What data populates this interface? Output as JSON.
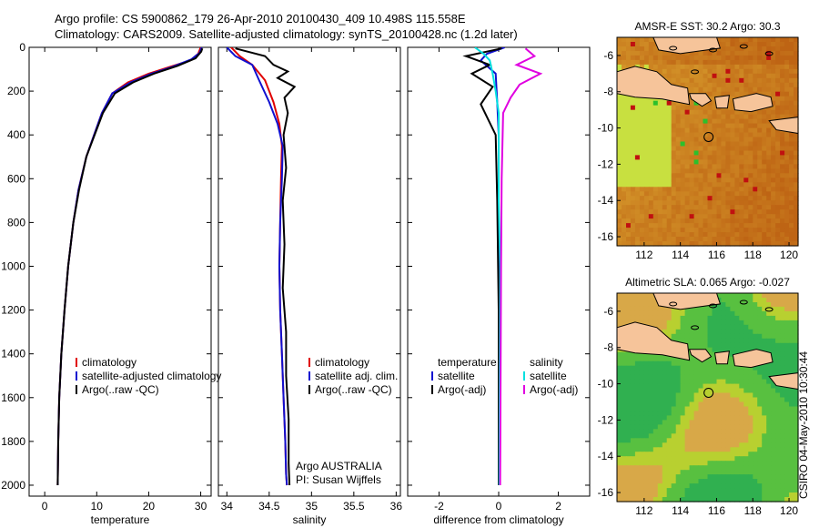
{
  "header": {
    "line1": "Argo profile: CS 5900862_179 26-Apr-2010 20100430_409 10.498S 115.558E",
    "line2": "Climatology: CARS2009. Satellite-adjusted climatology: synTS_20100428.nc (1.2d later)"
  },
  "side_label": "CSIRO 04-May-2010 10:30:44",
  "colors": {
    "climatology": "#e00000",
    "satellite": "#1010d0",
    "argo": "#000000",
    "cyan": "#00e0e0",
    "magenta": "#e000e0",
    "land": "#f6c49a"
  },
  "chart_data": [
    {
      "type": "line",
      "name": "temperature",
      "xlabel": "temperature",
      "xlim": [
        -3,
        32
      ],
      "ylim": [
        2050,
        0
      ],
      "xticks": [
        0,
        10,
        20,
        30
      ],
      "yticks": [
        0,
        200,
        400,
        600,
        800,
        1000,
        1200,
        1400,
        1600,
        1800,
        2000
      ],
      "legend": [
        "climatology",
        "satellite-adjusted climatology",
        "Argo(..raw -QC)"
      ],
      "series": [
        {
          "name": "climatology",
          "x": [
            30,
            29.5,
            28,
            24,
            20,
            16,
            13,
            11,
            9.5,
            8,
            6.5,
            5.5,
            4.5,
            3.8,
            3.2,
            2.8,
            2.6,
            2.5
          ],
          "y": [
            0,
            30,
            60,
            90,
            120,
            160,
            210,
            300,
            400,
            500,
            650,
            800,
            1000,
            1200,
            1400,
            1600,
            1800,
            2000
          ]
        },
        {
          "name": "satellite-adjusted",
          "x": [
            30.2,
            29.8,
            28.2,
            24.5,
            20.5,
            16.5,
            13,
            11,
            9.5,
            8,
            6.5,
            5.5,
            4.5,
            3.8,
            3.2,
            2.8,
            2.6,
            2.5
          ],
          "y": [
            0,
            25,
            55,
            90,
            120,
            160,
            210,
            300,
            400,
            500,
            650,
            800,
            1000,
            1200,
            1400,
            1600,
            1800,
            2000
          ]
        },
        {
          "name": "Argo",
          "x": [
            30.3,
            30.1,
            29,
            25.5,
            21,
            17,
            13.5,
            11.2,
            9.6,
            8,
            6.6,
            5.5,
            4.5,
            3.8,
            3.2,
            2.8,
            2.6,
            2.5
          ],
          "y": [
            5,
            20,
            50,
            85,
            120,
            160,
            210,
            300,
            400,
            500,
            650,
            800,
            1000,
            1200,
            1400,
            1600,
            1800,
            2000
          ]
        }
      ]
    },
    {
      "type": "line",
      "name": "salinity",
      "xlabel": "salinity",
      "xlim": [
        33.9,
        36.05
      ],
      "ylim": [
        2050,
        0
      ],
      "xticks": [
        34,
        34.5,
        35,
        35.5,
        36
      ],
      "legend": [
        "climatology",
        "satellite adj. clim.",
        "Argo(..raw -QC)"
      ],
      "annotations": [
        "Argo AUSTRALIA",
        "PI: Susan Wijffels"
      ],
      "series": [
        {
          "name": "climatology",
          "x": [
            34.05,
            34.15,
            34.3,
            34.45,
            34.55,
            34.62,
            34.65,
            34.64,
            34.63,
            34.62,
            34.63,
            34.65,
            34.67,
            34.69,
            34.7,
            34.71
          ],
          "y": [
            0,
            40,
            80,
            150,
            250,
            350,
            450,
            600,
            800,
            1000,
            1200,
            1400,
            1600,
            1800,
            1950,
            2000
          ]
        },
        {
          "name": "satellite",
          "x": [
            34.0,
            34.1,
            34.3,
            34.38,
            34.5,
            34.6,
            34.66,
            34.65,
            34.63,
            34.62,
            34.63,
            34.65,
            34.67,
            34.69,
            34.7,
            34.71
          ],
          "y": [
            0,
            40,
            80,
            150,
            250,
            350,
            450,
            600,
            800,
            1000,
            1200,
            1400,
            1600,
            1800,
            1950,
            2000
          ]
        },
        {
          "name": "Argo",
          "x": [
            34.1,
            34.45,
            34.55,
            34.72,
            34.6,
            34.8,
            34.68,
            34.72,
            34.67,
            34.7,
            34.66,
            34.68,
            34.66,
            34.7,
            34.7,
            34.73,
            34.73,
            34.74
          ],
          "y": [
            5,
            40,
            80,
            110,
            140,
            180,
            230,
            300,
            400,
            550,
            700,
            900,
            1100,
            1300,
            1500,
            1700,
            1900,
            2000
          ]
        }
      ]
    },
    {
      "type": "line",
      "name": "difference",
      "xlabel": "difference from climatology",
      "xlim": [
        -3.05,
        3.05
      ],
      "ylim": [
        2050,
        0
      ],
      "xticks": [
        -2,
        0,
        2
      ],
      "legend_left_title": "temperature",
      "legend_right_title": "salinity",
      "legend": [
        "satellite",
        "Argo(-adj)",
        "satellite",
        "Argo(-adj)"
      ],
      "series": [
        {
          "name": "temperature satellite",
          "x": [
            0.2,
            -0.4,
            -0.6,
            -0.1,
            -0.05,
            0,
            0,
            0,
            0,
            0
          ],
          "y": [
            0,
            30,
            60,
            120,
            250,
            400,
            600,
            1000,
            1500,
            2000
          ]
        },
        {
          "name": "temperature Argo(-adj)",
          "x": [
            0.1,
            -1.1,
            -0.3,
            -0.9,
            -0.2,
            -0.6,
            -0.1,
            -0.05,
            0,
            0
          ],
          "y": [
            5,
            40,
            80,
            120,
            180,
            260,
            400,
            700,
            1200,
            2000
          ]
        },
        {
          "name": "salinity satellite",
          "x": [
            -0.8,
            -0.5,
            -0.3,
            -0.2,
            -0.1,
            0,
            0,
            0,
            0.05,
            0.02
          ],
          "y": [
            0,
            30,
            60,
            120,
            200,
            300,
            400,
            700,
            1000,
            2000
          ]
        },
        {
          "name": "salinity Argo(-adj)",
          "x": [
            0.9,
            1.2,
            0.6,
            1.4,
            0.7,
            0.4,
            0.15,
            0.1,
            0.08,
            0.05
          ],
          "y": [
            5,
            40,
            80,
            120,
            170,
            230,
            300,
            600,
            1000,
            2000
          ]
        }
      ]
    },
    {
      "type": "heatmap",
      "name": "amsre",
      "title": "AMSR-E SST: 30.2 Argo: 30.3",
      "xlim": [
        110.5,
        120.5
      ],
      "ylim": [
        -16.5,
        -5
      ],
      "xticks": [
        112,
        114,
        116,
        118,
        120
      ],
      "yticks": [
        -6,
        -8,
        -10,
        -12,
        -14,
        -16
      ],
      "marker": {
        "lon": 115.558,
        "lat": -10.498
      }
    },
    {
      "type": "heatmap",
      "name": "sla",
      "title": "Altimetric SLA: 0.065 Argo: -0.027",
      "xlim": [
        110.5,
        120.5
      ],
      "ylim": [
        -16.5,
        -5
      ],
      "xticks": [
        112,
        114,
        116,
        118,
        120
      ],
      "yticks": [
        -6,
        -8,
        -10,
        -12,
        -14,
        -16
      ],
      "marker": {
        "lon": 115.558,
        "lat": -10.498
      }
    }
  ]
}
